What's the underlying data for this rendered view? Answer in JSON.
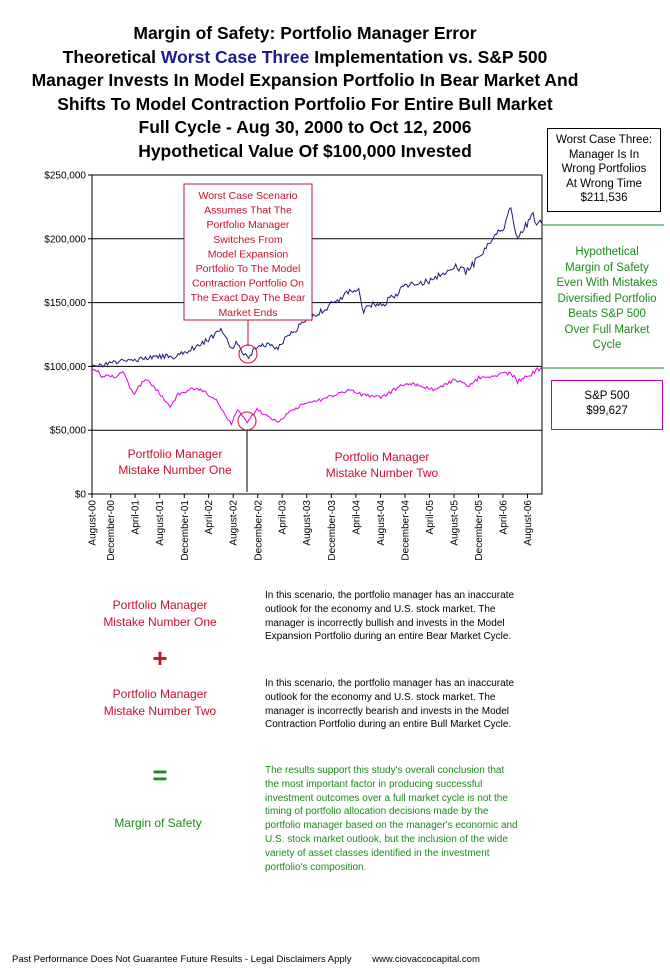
{
  "title": {
    "line1": "Margin of Safety:  Portfolio Manager Error",
    "line2_pre": "Theoretical ",
    "line2_accent": "Worst Case Three",
    "line2_post": " Implementation vs. S&P 500",
    "line3": "Manager Invests In Model Expansion Portfolio In Bear Market And",
    "line4": "Shifts To Model Contraction Portfolio For Entire Bull Market",
    "line5": "Full Cycle - Aug 30, 2000 to Oct 12, 2006",
    "line6": "Hypothetical Value Of $100,000 Invested"
  },
  "worst_case_box": [
    "Worst Case Three:",
    "Manager Is In",
    "Wrong Portfolios",
    "At Wrong Time",
    "$211,536"
  ],
  "margin_label": [
    "Hypothetical",
    "Margin of Safety",
    "Even With Mistakes",
    "Diversified Portfolio",
    "Beats S&P 500",
    "Over Full Market",
    "Cycle"
  ],
  "sp_box": [
    "S&P 500",
    "$99,627"
  ],
  "colors": {
    "manager": "#1c1c78",
    "sp500": "#e000e0",
    "red": "#c8102e",
    "green": "#1a8c1a"
  },
  "chart_data": {
    "type": "line",
    "ylim": [
      0,
      250000
    ],
    "y_ticks": [
      "$0",
      "$50,000",
      "$100,000",
      "$150,000",
      "$200,000",
      "$250,000"
    ],
    "y_tick_values": [
      0,
      50000,
      100000,
      150000,
      200000,
      250000
    ],
    "x_tick_labels": [
      "August-00",
      "December-00",
      "April-01",
      "August-01",
      "December-01",
      "April-02",
      "August-02",
      "December-02",
      "April-03",
      "August-03",
      "December-03",
      "April-04",
      "August-04",
      "December-04",
      "April-05",
      "August-05",
      "December-05",
      "April-06",
      "August-06"
    ],
    "x_range": [
      "2000-08-30",
      "2006-10-12"
    ],
    "annotation": [
      "Worst  Case Scenario",
      "Assumes That The",
      "Portfolio Manager",
      "Switches From",
      "Model Expansion",
      "Portfolio To The Model",
      "Contraction Portfolio On",
      "The Exact Day The Bear",
      "Market Ends"
    ],
    "mistake_one": [
      "Portfolio Manager",
      "Mistake Number One"
    ],
    "mistake_two": [
      "Portfolio Manager",
      "Mistake Number Two"
    ],
    "series": [
      {
        "values": [
          [
            "2000-08-30",
            100000
          ],
          [
            "2000-10-15",
            101000
          ],
          [
            "2000-12-01",
            102500
          ],
          [
            "2001-01-15",
            104000
          ],
          [
            "2001-03-15",
            104500
          ],
          [
            "2001-05-15",
            106000
          ],
          [
            "2001-07-01",
            107000
          ],
          [
            "2001-09-01",
            108000
          ],
          [
            "2001-09-21",
            106500
          ],
          [
            "2001-11-01",
            109500
          ],
          [
            "2002-01-01",
            113000
          ],
          [
            "2002-03-01",
            118000
          ],
          [
            "2002-05-01",
            125000
          ],
          [
            "2002-06-01",
            129000
          ],
          [
            "2002-06-15",
            126000
          ],
          [
            "2002-07-23",
            113000
          ],
          [
            "2002-08-15",
            118000
          ],
          [
            "2002-10-09",
            107000
          ],
          [
            "2002-11-15",
            113000
          ],
          [
            "2003-01-01",
            117000
          ],
          [
            "2003-03-11",
            115000
          ],
          [
            "2003-05-01",
            124000
          ],
          [
            "2003-07-01",
            132000
          ],
          [
            "2003-09-01",
            139000
          ],
          [
            "2003-11-01",
            145000
          ],
          [
            "2004-01-01",
            152000
          ],
          [
            "2004-03-01",
            158000
          ],
          [
            "2004-04-15",
            160000
          ],
          [
            "2004-05-10",
            143000
          ],
          [
            "2004-07-01",
            150000
          ],
          [
            "2004-08-15",
            148000
          ],
          [
            "2004-10-01",
            155000
          ],
          [
            "2004-12-01",
            162000
          ],
          [
            "2005-02-01",
            166000
          ],
          [
            "2005-04-15",
            167000
          ],
          [
            "2005-06-01",
            172000
          ],
          [
            "2005-08-01",
            178000
          ],
          [
            "2005-10-15",
            174000
          ],
          [
            "2005-12-01",
            188000
          ],
          [
            "2006-01-15",
            195000
          ],
          [
            "2006-03-01",
            203000
          ],
          [
            "2006-04-15",
            212000
          ],
          [
            "2006-05-10",
            225000
          ],
          [
            "2006-06-13",
            201000
          ],
          [
            "2006-07-15",
            208000
          ],
          [
            "2006-08-20",
            219000
          ],
          [
            "2006-09-15",
            214000
          ],
          [
            "2006-10-12",
            211536
          ]
        ]
      },
      {
        "values": [
          [
            "2000-08-30",
            100000
          ],
          [
            "2000-10-15",
            93000
          ],
          [
            "2000-12-01",
            91000
          ],
          [
            "2001-01-31",
            95000
          ],
          [
            "2001-03-22",
            78000
          ],
          [
            "2001-05-21",
            90000
          ],
          [
            "2001-07-15",
            82000
          ],
          [
            "2001-09-21",
            69000
          ],
          [
            "2001-11-01",
            78000
          ],
          [
            "2002-01-01",
            82000
          ],
          [
            "2002-03-01",
            81000
          ],
          [
            "2002-05-01",
            75000
          ],
          [
            "2002-07-23",
            55000
          ],
          [
            "2002-08-22",
            66000
          ],
          [
            "2002-10-09",
            56000
          ],
          [
            "2002-11-27",
            66000
          ],
          [
            "2003-03-11",
            56000
          ],
          [
            "2003-05-01",
            64000
          ],
          [
            "2003-07-01",
            69000
          ],
          [
            "2003-09-01",
            72000
          ],
          [
            "2003-11-01",
            75000
          ],
          [
            "2004-01-01",
            79000
          ],
          [
            "2004-03-01",
            81000
          ],
          [
            "2004-05-15",
            77000
          ],
          [
            "2004-08-12",
            76000
          ],
          [
            "2004-11-01",
            84000
          ],
          [
            "2005-01-01",
            87000
          ],
          [
            "2005-04-20",
            82000
          ],
          [
            "2005-07-01",
            87000
          ],
          [
            "2005-08-01",
            89000
          ],
          [
            "2005-10-15",
            85000
          ],
          [
            "2005-12-01",
            91000
          ],
          [
            "2006-03-01",
            93000
          ],
          [
            "2006-05-10",
            95000
          ],
          [
            "2006-06-13",
            88000
          ],
          [
            "2006-08-20",
            94000
          ],
          [
            "2006-10-12",
            99627
          ]
        ]
      }
    ]
  },
  "explain": {
    "left_one": [
      "Portfolio Manager",
      "Mistake Number One"
    ],
    "plus": "+",
    "left_two": [
      "Portfolio Manager",
      "Mistake Number Two"
    ],
    "equals": "=",
    "left_result": "Margin of Safety",
    "para_one": [
      "In this scenario, the portfolio manager has an inaccurate",
      "outlook for the economy and U.S. stock market.  The",
      "manager is incorrectly  bullish  and invests in the Model",
      "Expansion  Portfolio during an entire Bear  Market Cycle."
    ],
    "para_two": [
      "In this scenario, the portfolio manager has an inaccurate",
      "outlook for the economy and U.S. stock market.  The",
      "manager is incorrectly bearish and invests in the Model",
      "Contraction Portfolio during an entire Bull Market Cycle."
    ],
    "para_result": [
      "The results support this study's overall conclusion that",
      "the most important factor in producing successful",
      "investment outcomes over a full market cycle is not the",
      "timing of portfolio allocation decisions made by the",
      "portfolio manager based on the manager's economic and",
      "U.S. stock market outlook, but the inclusion of the wide",
      "variety of asset classes identified  in the investment",
      "portfolio's composition."
    ]
  },
  "footer": {
    "disclaimer": "Past Performance Does Not Guarantee Future Results - Legal Disclaimers Apply",
    "website": "www.ciovaccocapital.com"
  }
}
